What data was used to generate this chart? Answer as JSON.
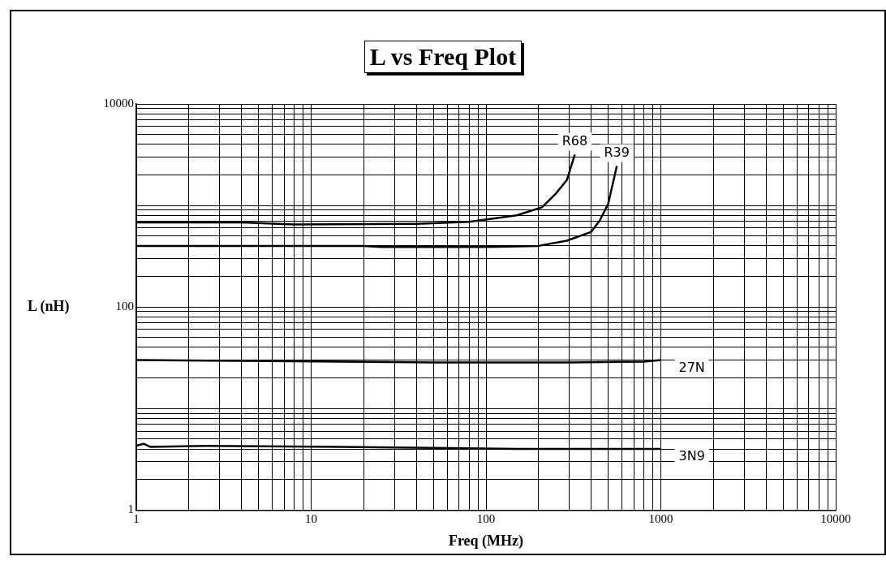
{
  "chart_data": {
    "type": "line",
    "title": "L vs Freq Plot",
    "xlabel": "Freq (MHz)",
    "ylabel": "L (nH)",
    "log": "xy",
    "xlim": [
      1,
      10000
    ],
    "ylim": [
      1,
      10000
    ],
    "xticks": [
      1,
      10,
      100,
      1000,
      10000
    ],
    "yticks": [
      1,
      100,
      10000
    ],
    "grid": true,
    "legend": false,
    "marker": "none",
    "line_style": "solid",
    "series": [
      {
        "name": "R68",
        "color": "#000000",
        "x": [
          1,
          4,
          8,
          40,
          80,
          150,
          209,
          250,
          290,
          322
        ],
        "values": [
          680,
          680,
          650,
          660,
          690,
          800,
          960,
          1300,
          1780,
          3170
        ]
      },
      {
        "name": "R39",
        "color": "#000000",
        "x": [
          1,
          20,
          25,
          100,
          200,
          290,
          400,
          447,
          500,
          560
        ],
        "values": [
          400,
          400,
          390,
          390,
          400,
          450,
          550,
          710,
          1040,
          2450
        ]
      },
      {
        "name": "27N",
        "color": "#000000",
        "x": [
          1,
          4,
          15,
          50,
          300,
          800,
          1000
        ],
        "values": [
          30,
          29.5,
          29,
          28.5,
          28.5,
          29,
          30
        ]
      },
      {
        "name": "3N9",
        "color": "#000000",
        "x": [
          1,
          1.1,
          1.2,
          2.5,
          15,
          50,
          150,
          1000
        ],
        "values": [
          4.3,
          4.5,
          4.2,
          4.3,
          4.2,
          4.1,
          4.0,
          4.0
        ]
      }
    ]
  }
}
